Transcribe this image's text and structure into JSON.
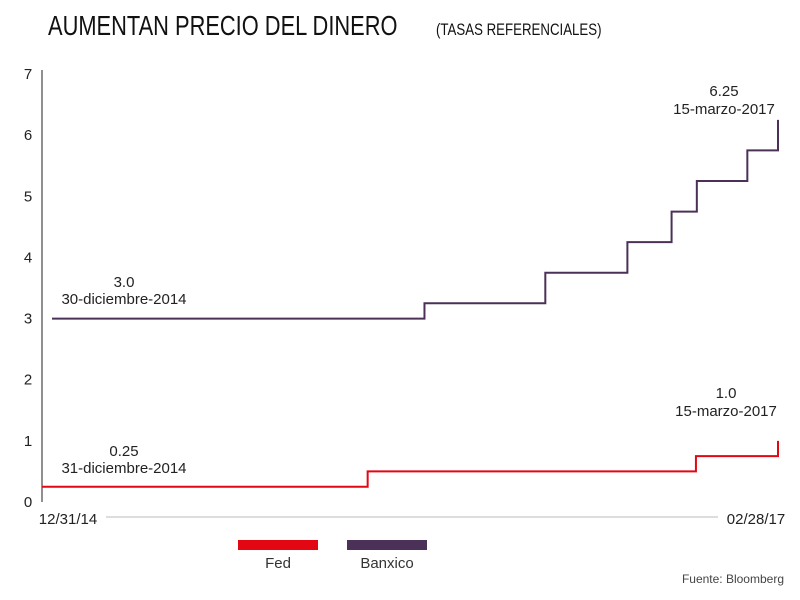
{
  "title": "AUMENTAN PRECIO DEL DINERO",
  "subtitle": "(TASAS REFERENCIALES)",
  "source": "Fuente: Bloomberg",
  "colors": {
    "fed": "#e30613",
    "banxico": "#4b3157",
    "axis": "#222222"
  },
  "chart_data": {
    "type": "line",
    "step": true,
    "title": "AUMENTAN PRECIO DEL DINERO",
    "subtitle": "(TASAS REFERENCIALES)",
    "xlabel": "",
    "ylabel": "",
    "x_tick_labels": [
      "12/31/14",
      "02/28/17"
    ],
    "xlim": [
      "2014-12-31",
      "2017-02-28"
    ],
    "ylim": [
      0,
      7
    ],
    "yticks": [
      0,
      1,
      2,
      3,
      4,
      5,
      6,
      7
    ],
    "grid": false,
    "legend_position": "bottom-left",
    "series": [
      {
        "name": "Fed",
        "color": "#e30613",
        "x": [
          "2014-12-31",
          "2015-12-16",
          "2016-12-14",
          "2017-03-15"
        ],
        "y": [
          0.25,
          0.5,
          0.75,
          1.0
        ]
      },
      {
        "name": "Banxico",
        "color": "#4b3157",
        "x": [
          "2014-12-30",
          "2016-02-17",
          "2016-06-30",
          "2016-09-29",
          "2016-11-17",
          "2016-12-15",
          "2017-02-09",
          "2017-03-15"
        ],
        "y": [
          3.0,
          3.25,
          3.75,
          4.25,
          4.75,
          5.25,
          5.75,
          6.25
        ]
      }
    ],
    "annotations": [
      {
        "series": "Banxico",
        "value": "3.0",
        "date": "30-diciembre-2014"
      },
      {
        "series": "Banxico",
        "value": "6.25",
        "date": "15-marzo-2017"
      },
      {
        "series": "Fed",
        "value": "0.25",
        "date": "31-diciembre-2014"
      },
      {
        "series": "Fed",
        "value": "1.0",
        "date": "15-marzo-2017"
      }
    ]
  }
}
